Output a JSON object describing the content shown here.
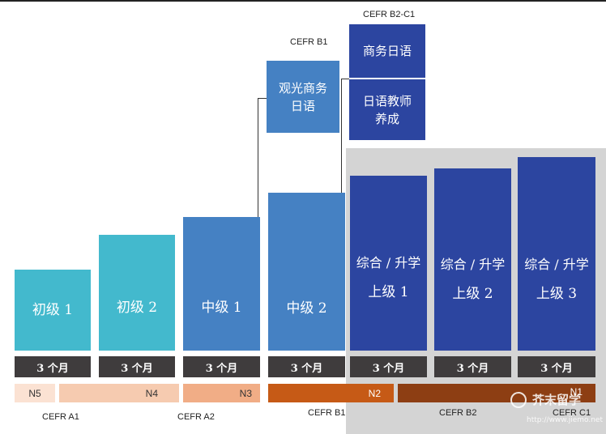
{
  "top_tracks": {
    "b1_label": "CEFR B1",
    "b1_box": "观光商务\n日语",
    "b2c1_label": "CEFR B2-C1",
    "b2c1_box_top": "商务日语",
    "b2c1_box_bottom": "日语教师\n养成"
  },
  "levels": [
    {
      "subtitle": "",
      "name": "初级 1",
      "duration": "3 个月"
    },
    {
      "subtitle": "",
      "name": "初级 2",
      "duration": "3 个月"
    },
    {
      "subtitle": "",
      "name": "中级 1",
      "duration": "3 个月"
    },
    {
      "subtitle": "",
      "name": "中级 2",
      "duration": "3 个月"
    },
    {
      "subtitle": "综合 / 升学",
      "name": "上级 1",
      "duration": "3 个月"
    },
    {
      "subtitle": "综合 / 升学",
      "name": "上级 2",
      "duration": "3 个月"
    },
    {
      "subtitle": "综合 / 升学",
      "name": "上级 3",
      "duration": "3 个月"
    }
  ],
  "jlpt": [
    "N5",
    "N4",
    "N3",
    "N2",
    "N1"
  ],
  "cefr": [
    "CEFR A1",
    "CEFR A2",
    "CEFR B1",
    "CEFR B2",
    "CEFR C1"
  ],
  "colors": {
    "beginner": "#43b9cd",
    "intermediate": "#4581c3",
    "advanced": "#2c45a0",
    "n5": "#fbe2d3",
    "n4": "#f6cbb0",
    "n3": "#f1ad86",
    "n2": "#c65a16",
    "n1": "#8d3e13"
  },
  "watermark": {
    "text": "芥末留学",
    "url": "http://www.jiemo.net"
  }
}
